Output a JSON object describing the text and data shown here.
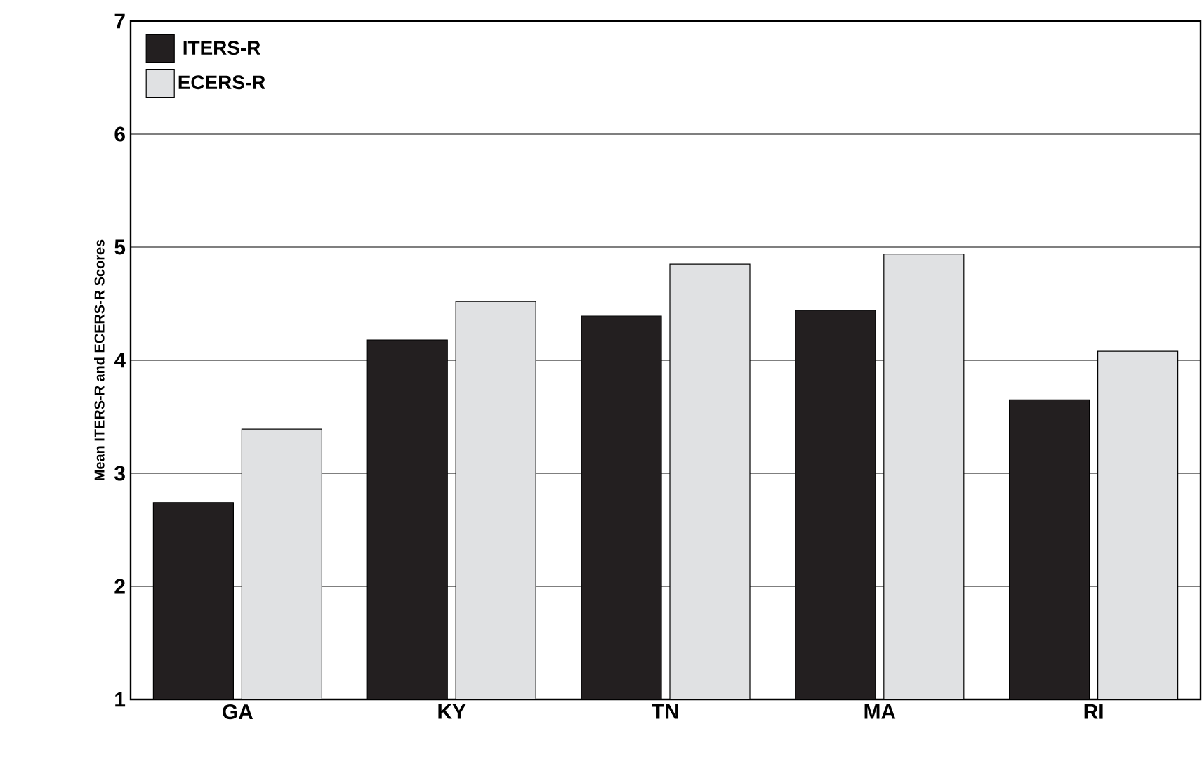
{
  "chart_data": {
    "type": "bar",
    "ylabel": "Mean ITERS-R and ECERS-R Scores",
    "categories": [
      "GA",
      "KY",
      "TN",
      "MA",
      "RI"
    ],
    "series": [
      {
        "name": "ITERS-R",
        "color": "#231f20",
        "values": [
          2.74,
          4.18,
          4.39,
          4.44,
          3.65
        ]
      },
      {
        "name": "ECERS-R",
        "color": "#e0e1e3",
        "values": [
          3.39,
          4.52,
          4.85,
          4.94,
          4.08
        ]
      }
    ],
    "ylim": [
      1,
      7
    ],
    "yticks": [
      1,
      2,
      3,
      4,
      5,
      6,
      7
    ],
    "grid": "y",
    "legend": "top left"
  }
}
